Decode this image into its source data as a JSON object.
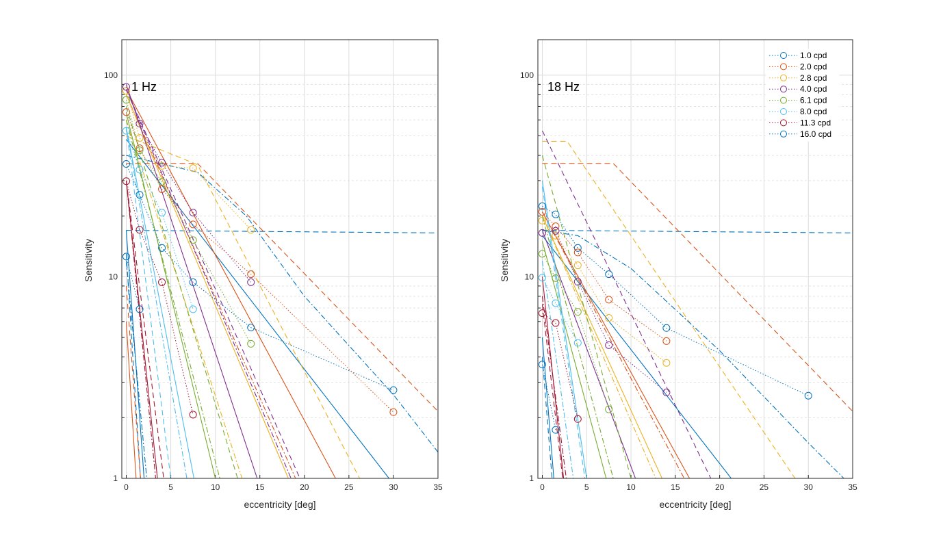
{
  "chart_data": [
    {
      "type": "line",
      "annotation": "1 Hz",
      "xlabel": "eccentricity [deg]",
      "ylabel": "Sensitivity",
      "xlim": [
        -0.5,
        35
      ],
      "ylim": [
        1,
        150
      ],
      "yscale": "log",
      "grid": true,
      "x_ticks": [
        "0",
        "5",
        "10",
        "15",
        "20",
        "25",
        "30",
        "35"
      ],
      "y_ticks": [
        "1",
        "10",
        "100"
      ],
      "series": [
        {
          "name": "1.0 cpd",
          "color": "#0072BD",
          "x": [
            0,
            1.5,
            4,
            7.5,
            14,
            30
          ],
          "y": [
            36.3,
            25.5,
            13.9,
            9.4,
            5.6,
            2.74
          ]
        },
        {
          "name": "2.0 cpd",
          "color": "#D95319",
          "x": [
            0,
            1.5,
            4,
            7.5,
            14,
            30
          ],
          "y": [
            65.6,
            43.4,
            27.2,
            18.2,
            10.3,
            2.13
          ]
        },
        {
          "name": "2.8 cpd",
          "color": "#EDB120",
          "x": [
            0,
            1.5,
            4,
            7.5,
            14
          ],
          "y": [
            83.6,
            48.8,
            35.5,
            34.6,
            17.1
          ]
        },
        {
          "name": "4.0 cpd",
          "color": "#7E2F8E",
          "x": [
            0,
            1.5,
            4,
            7.5,
            14
          ],
          "y": [
            87.5,
            57.5,
            36.8,
            20.8,
            9.4
          ]
        },
        {
          "name": "6.1 cpd",
          "color": "#77AC30",
          "x": [
            0,
            1.5,
            4,
            7.5,
            14
          ],
          "y": [
            75.5,
            42.4,
            29.6,
            15.2,
            4.65
          ]
        },
        {
          "name": "8.0 cpd",
          "color": "#4DBEEE",
          "x": [
            0,
            1.5,
            4,
            7.5
          ],
          "y": [
            53,
            34,
            20.8,
            6.9
          ]
        },
        {
          "name": "11.3 cpd",
          "color": "#A2142F",
          "x": [
            0,
            1.5,
            4,
            7.5
          ],
          "y": [
            29.8,
            17.1,
            9.4,
            2.07
          ]
        },
        {
          "name": "16.0 cpd",
          "color": "#0072BD",
          "x": [
            0,
            1.5
          ],
          "y": [
            12.6,
            6.9
          ]
        }
      ],
      "model_lines": [
        {
          "color": "#0072BD",
          "style": "dashed",
          "x": [
            0,
            35
          ],
          "y": [
            17,
            16.5
          ]
        },
        {
          "color": "#D95319",
          "style": "dashed",
          "x": [
            0,
            8,
            35
          ],
          "y": [
            36.5,
            36.5,
            2.15
          ]
        },
        {
          "color": "#0072BD",
          "style": "dashdot",
          "x": [
            0,
            8,
            13.5,
            20,
            30,
            35
          ],
          "y": [
            40,
            33,
            20,
            8,
            2.6,
            1.35
          ]
        },
        {
          "color": "#0072BD",
          "style": "solid",
          "x": [
            0,
            29.5
          ],
          "y": [
            48,
            1
          ]
        },
        {
          "color": "#D95319",
          "style": "solid",
          "x": [
            0,
            23.5
          ],
          "y": [
            85,
            1
          ]
        },
        {
          "color": "#D95319",
          "style": "dashdot",
          "x": [
            0,
            19
          ],
          "y": [
            80,
            1
          ]
        },
        {
          "color": "#EDB120",
          "style": "dashed",
          "x": [
            0,
            8,
            26.2
          ],
          "y": [
            50,
            36,
            1
          ]
        },
        {
          "color": "#EDB120",
          "style": "solid",
          "x": [
            0,
            18.2
          ],
          "y": [
            80,
            1
          ]
        },
        {
          "color": "#EDB120",
          "style": "dashdot",
          "x": [
            0,
            13
          ],
          "y": [
            60,
            1
          ]
        },
        {
          "color": "#7E2F8E",
          "style": "solid",
          "x": [
            0,
            14.7
          ],
          "y": [
            90,
            1
          ]
        },
        {
          "color": "#7E2F8E",
          "style": "dashed",
          "x": [
            0,
            19.5
          ],
          "y": [
            85,
            1
          ]
        },
        {
          "color": "#7E2F8E",
          "style": "dashdot",
          "x": [
            0,
            18.5
          ],
          "y": [
            85,
            1
          ]
        },
        {
          "color": "#77AC30",
          "style": "solid",
          "x": [
            0,
            10
          ],
          "y": [
            65,
            1
          ]
        },
        {
          "color": "#77AC30",
          "style": "dashed",
          "x": [
            0,
            12.5
          ],
          "y": [
            70,
            1
          ]
        },
        {
          "color": "#77AC30",
          "style": "dashdot",
          "x": [
            0,
            10.5
          ],
          "y": [
            60,
            1
          ]
        },
        {
          "color": "#4DBEEE",
          "style": "solid",
          "x": [
            0,
            7.6
          ],
          "y": [
            55,
            1
          ]
        },
        {
          "color": "#4DBEEE",
          "style": "dashed",
          "x": [
            0,
            5
          ],
          "y": [
            55,
            1
          ]
        },
        {
          "color": "#4DBEEE",
          "style": "dashdot",
          "x": [
            0,
            6.8
          ],
          "y": [
            55,
            1
          ]
        },
        {
          "color": "#A2142F",
          "style": "solid",
          "x": [
            0,
            3.5
          ],
          "y": [
            30,
            1
          ]
        },
        {
          "color": "#A2142F",
          "style": "dashed",
          "x": [
            0,
            4.2
          ],
          "y": [
            30,
            1
          ]
        },
        {
          "color": "#A2142F",
          "style": "dashdot",
          "x": [
            0,
            3.3
          ],
          "y": [
            30,
            1
          ]
        },
        {
          "color": "#0072BD",
          "style": "solid",
          "x": [
            0,
            2
          ],
          "y": [
            17,
            1
          ]
        },
        {
          "color": "#0072BD",
          "style": "dashed",
          "x": [
            0,
            1.6
          ],
          "y": [
            13,
            1
          ]
        },
        {
          "color": "#0072BD",
          "style": "dashdot",
          "x": [
            0,
            2.3
          ],
          "y": [
            12,
            1
          ]
        },
        {
          "color": "#D95319",
          "style": "dashed",
          "x": [
            0,
            1.6
          ],
          "y": [
            9,
            1
          ]
        },
        {
          "color": "#D95319",
          "style": "solid",
          "x": [
            0,
            1.1
          ],
          "y": [
            6,
            1
          ]
        }
      ]
    },
    {
      "type": "line",
      "annotation": "18 Hz",
      "xlabel": "eccentricity [deg]",
      "ylabel": "Sensitivity",
      "xlim": [
        -0.5,
        35
      ],
      "ylim": [
        1,
        150
      ],
      "yscale": "log",
      "grid": true,
      "legend": "top-right",
      "x_ticks": [
        "0",
        "5",
        "10",
        "15",
        "20",
        "25",
        "30",
        "35"
      ],
      "y_ticks": [
        "1",
        "10",
        "100"
      ],
      "series": [
        {
          "name": "1.0 cpd",
          "color": "#0072BD",
          "x": [
            0,
            1.5,
            4,
            7.5,
            14,
            30
          ],
          "y": [
            22.4,
            20.4,
            13.9,
            10.3,
            5.57,
            2.57
          ]
        },
        {
          "name": "2.0 cpd",
          "color": "#D95319",
          "x": [
            0,
            1.5,
            4,
            7.5,
            14
          ],
          "y": [
            21,
            17.8,
            13.2,
            7.7,
            4.8
          ]
        },
        {
          "name": "2.8 cpd",
          "color": "#EDB120",
          "x": [
            0,
            1.5,
            4,
            7.5,
            14
          ],
          "y": [
            19,
            16,
            11.4,
            6.25,
            3.74
          ]
        },
        {
          "name": "4.0 cpd",
          "color": "#7E2F8E",
          "x": [
            0,
            1.5,
            4,
            7.5,
            14
          ],
          "y": [
            16.5,
            16.9,
            9.45,
            4.58,
            2.67
          ]
        },
        {
          "name": "6.1 cpd",
          "color": "#77AC30",
          "x": [
            0,
            1.5,
            4,
            7.5
          ],
          "y": [
            13,
            9.85,
            6.7,
            2.2
          ]
        },
        {
          "name": "8.0 cpd",
          "color": "#4DBEEE",
          "x": [
            0,
            1.5,
            4
          ],
          "y": [
            9.9,
            7.4,
            4.7
          ]
        },
        {
          "name": "11.3 cpd",
          "color": "#A2142F",
          "x": [
            0,
            1.5,
            4
          ],
          "y": [
            6.6,
            5.9,
            1.97
          ]
        },
        {
          "name": "16.0 cpd",
          "color": "#0072BD",
          "x": [
            0,
            1.5
          ],
          "y": [
            3.67,
            1.74
          ]
        }
      ],
      "model_lines": [
        {
          "color": "#0072BD",
          "style": "dashed",
          "x": [
            0,
            35
          ],
          "y": [
            17,
            16.5
          ]
        },
        {
          "color": "#D95319",
          "style": "dashed",
          "x": [
            0,
            8,
            35
          ],
          "y": [
            36.5,
            36.5,
            2.15
          ]
        },
        {
          "color": "#EDB120",
          "style": "dashed",
          "x": [
            0,
            2.8,
            28.5
          ],
          "y": [
            47,
            47,
            1
          ]
        },
        {
          "color": "#7E2F8E",
          "style": "dashed",
          "x": [
            0,
            19
          ],
          "y": [
            53,
            1
          ]
        },
        {
          "color": "#0072BD",
          "style": "dashdot",
          "x": [
            0,
            4,
            10,
            20,
            30,
            34
          ],
          "y": [
            17,
            16,
            11,
            4.3,
            1.5,
            1
          ]
        },
        {
          "color": "#0072BD",
          "style": "solid",
          "x": [
            0,
            21.3
          ],
          "y": [
            16,
            1
          ]
        },
        {
          "color": "#D95319",
          "style": "solid",
          "x": [
            0,
            16.6
          ],
          "y": [
            21,
            1
          ]
        },
        {
          "color": "#D95319",
          "style": "dashdot",
          "x": [
            0,
            16
          ],
          "y": [
            21,
            1
          ]
        },
        {
          "color": "#EDB120",
          "style": "solid",
          "x": [
            0,
            13.5
          ],
          "y": [
            20,
            1
          ]
        },
        {
          "color": "#EDB120",
          "style": "dashdot",
          "x": [
            0,
            12.8
          ],
          "y": [
            20,
            1
          ]
        },
        {
          "color": "#7E2F8E",
          "style": "solid",
          "x": [
            0,
            10.5
          ],
          "y": [
            17,
            1
          ]
        },
        {
          "color": "#77AC30",
          "style": "solid",
          "x": [
            0,
            7.2
          ],
          "y": [
            15,
            1
          ]
        },
        {
          "color": "#77AC30",
          "style": "dashed",
          "x": [
            0,
            10
          ],
          "y": [
            40,
            1
          ]
        },
        {
          "color": "#77AC30",
          "style": "dashdot",
          "x": [
            0,
            8
          ],
          "y": [
            20,
            1
          ]
        },
        {
          "color": "#4DBEEE",
          "style": "solid",
          "x": [
            0,
            5
          ],
          "y": [
            30,
            1
          ]
        },
        {
          "color": "#4DBEEE",
          "style": "dashed",
          "x": [
            0,
            4.8
          ],
          "y": [
            28,
            1
          ]
        },
        {
          "color": "#4DBEEE",
          "style": "dashdot",
          "x": [
            0,
            3.5
          ],
          "y": [
            12,
            1
          ]
        },
        {
          "color": "#A2142F",
          "style": "solid",
          "x": [
            0,
            2.4
          ],
          "y": [
            10,
            1
          ]
        },
        {
          "color": "#A2142F",
          "style": "dashed",
          "x": [
            0,
            2.3
          ],
          "y": [
            7.3,
            1
          ]
        },
        {
          "color": "#A2142F",
          "style": "dashdot",
          "x": [
            0,
            2.7
          ],
          "y": [
            8,
            1
          ]
        },
        {
          "color": "#0072BD",
          "style": "solid",
          "x": [
            0,
            1.3
          ],
          "y": [
            5,
            1
          ]
        },
        {
          "color": "#0072BD",
          "style": "dashed",
          "x": [
            0,
            1.1
          ],
          "y": [
            4,
            1
          ]
        }
      ]
    }
  ]
}
